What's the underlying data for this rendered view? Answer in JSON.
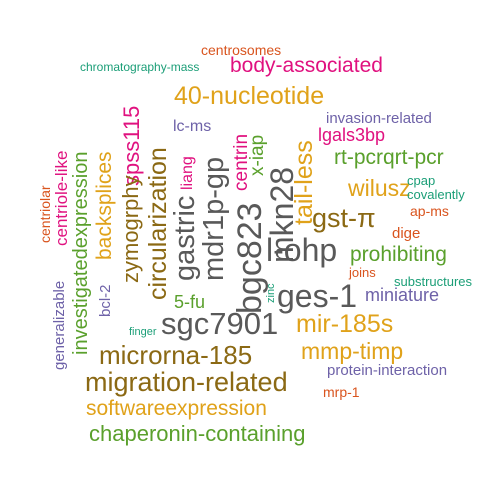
{
  "colors": {
    "gray": "#595959",
    "brown": "#8B6914",
    "gold": "#E0A21A",
    "green": "#5AA02C",
    "magenta": "#E0117F",
    "purple": "#6E62A8",
    "orange": "#D9541E",
    "teal": "#1B9E77"
  },
  "words": [
    "centrosomes",
    "chromatography-mass",
    "body-associated",
    "40-nucleotide",
    "invasion-related",
    "lc-ms",
    "lgals3bp",
    "rt-pcrqrt-pcr",
    "wilusz",
    "gst-π",
    "cpap",
    "covalently",
    "ap-ms",
    "dige",
    "prohibiting",
    "joins",
    "ges-1",
    "substructures",
    "miniature",
    "mir-185s",
    "sgc7901",
    "finger",
    "mmp-timp",
    "microrna-185",
    "protein-interaction",
    "migration-related",
    "mrp-1",
    "softwareexpression",
    "chaperonin-containing",
    "spss115",
    "zymogrphy",
    "circularization",
    "gastric",
    "mdr1p-gp",
    "bgc823",
    "mkn28",
    "tail-less",
    "l-ohp",
    "centrin",
    "x-iap",
    "liang",
    "5-fu",
    "zinc",
    "backsplices",
    "bcl-2",
    "investigatedexpression",
    "centriole-like",
    "generalizable",
    "centriolar"
  ]
}
